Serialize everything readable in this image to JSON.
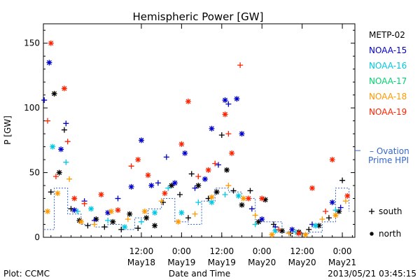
{
  "chart_data": {
    "type": "scatter",
    "title": "Hemispheric Power [GW]",
    "ylabel": "P [GW]",
    "xlabel": "Date and Time",
    "ylim": [
      0,
      165
    ],
    "xlim": [
      "2013-05-17T06:45",
      "2013-05-21T03:45"
    ],
    "yticks": [
      0,
      50,
      100,
      150
    ],
    "xticks": [
      {
        "time": "12:00",
        "date": "May18",
        "t": "2013-05-18T12:00"
      },
      {
        "time": "0:00",
        "date": "May19",
        "t": "2013-05-19T00:00"
      },
      {
        "time": "12:00",
        "date": "May19",
        "t": "2013-05-19T12:00"
      },
      {
        "time": "0:00",
        "date": "May20",
        "t": "2013-05-20T00:00"
      },
      {
        "time": "12:00",
        "date": "May20",
        "t": "2013-05-20T12:00"
      },
      {
        "time": "0:00",
        "date": "May21",
        "t": "2013-05-21T00:00"
      }
    ],
    "grid": false,
    "legend_position": "right",
    "markers": {
      "south": "+",
      "north": "*"
    },
    "series": [
      {
        "name": "METP-02",
        "color": "#000000",
        "points": [
          {
            "t": "2013-05-17T09:00",
            "v": 35,
            "m": "+"
          },
          {
            "t": "2013-05-17T10:00",
            "v": 111,
            "m": "*"
          },
          {
            "t": "2013-05-17T11:30",
            "v": 50,
            "m": "*"
          },
          {
            "t": "2013-05-17T13:00",
            "v": 83,
            "m": "+"
          },
          {
            "t": "2013-05-17T15:00",
            "v": 22,
            "m": "+"
          },
          {
            "t": "2013-05-17T17:30",
            "v": 13,
            "m": "*"
          },
          {
            "t": "2013-05-17T20:00",
            "v": 9,
            "m": "+"
          },
          {
            "t": "2013-05-17T22:30",
            "v": 14,
            "m": "*"
          },
          {
            "t": "2013-05-18T01:00",
            "v": 8,
            "m": "+"
          },
          {
            "t": "2013-05-18T03:30",
            "v": 12,
            "m": "*"
          },
          {
            "t": "2013-05-18T06:00",
            "v": 6,
            "m": "+"
          },
          {
            "t": "2013-05-18T08:30",
            "v": 18,
            "m": "*"
          },
          {
            "t": "2013-05-18T11:00",
            "v": 7,
            "m": "+"
          },
          {
            "t": "2013-05-18T13:30",
            "v": 15,
            "m": "*"
          },
          {
            "t": "2013-05-18T16:00",
            "v": 9,
            "m": "*"
          },
          {
            "t": "2013-05-18T18:30",
            "v": 27,
            "m": "+"
          },
          {
            "t": "2013-05-18T21:00",
            "v": 40,
            "m": "*"
          },
          {
            "t": "2013-05-18T23:30",
            "v": 33,
            "m": "+"
          },
          {
            "t": "2013-05-19T02:00",
            "v": 15,
            "m": "+"
          },
          {
            "t": "2013-05-19T03:00",
            "v": 49,
            "m": "+"
          },
          {
            "t": "2013-05-19T05:00",
            "v": 40,
            "m": "*"
          },
          {
            "t": "2013-05-19T08:00",
            "v": 30,
            "m": "+"
          },
          {
            "t": "2013-05-19T10:30",
            "v": 35,
            "m": "*"
          },
          {
            "t": "2013-05-19T12:00",
            "v": 79,
            "m": "+"
          },
          {
            "t": "2013-05-19T13:30",
            "v": 52,
            "m": "*"
          },
          {
            "t": "2013-05-19T15:30",
            "v": 36,
            "m": "+"
          },
          {
            "t": "2013-05-19T18:00",
            "v": 25,
            "m": "*"
          },
          {
            "t": "2013-05-19T20:30",
            "v": 36,
            "m": "+"
          },
          {
            "t": "2013-05-19T23:00",
            "v": 12,
            "m": "*"
          },
          {
            "t": "2013-05-20T01:00",
            "v": 29,
            "m": "*"
          },
          {
            "t": "2013-05-20T03:30",
            "v": 10,
            "m": "+"
          },
          {
            "t": "2013-05-20T06:00",
            "v": 5,
            "m": "*"
          },
          {
            "t": "2013-05-20T08:30",
            "v": 3,
            "m": "+"
          },
          {
            "t": "2013-05-20T11:00",
            "v": 4,
            "m": "*"
          },
          {
            "t": "2013-05-20T14:00",
            "v": 6,
            "m": "+"
          },
          {
            "t": "2013-05-20T17:00",
            "v": 9,
            "m": "*"
          },
          {
            "t": "2013-05-20T20:00",
            "v": 15,
            "m": "+"
          },
          {
            "t": "2013-05-20T23:00",
            "v": 20,
            "m": "*"
          },
          {
            "t": "2013-05-21T00:00",
            "v": 44,
            "m": "+"
          }
        ]
      },
      {
        "name": "NOAA-15",
        "color": "#0000cc",
        "points": [
          {
            "t": "2013-05-17T07:00",
            "v": 106,
            "m": "+"
          },
          {
            "t": "2013-05-17T08:30",
            "v": 135,
            "m": "*"
          },
          {
            "t": "2013-05-17T12:00",
            "v": 68,
            "m": "*"
          },
          {
            "t": "2013-05-17T13:30",
            "v": 88,
            "m": "+"
          },
          {
            "t": "2013-05-17T16:00",
            "v": 21,
            "m": "*"
          },
          {
            "t": "2013-05-17T19:00",
            "v": 28,
            "m": "+"
          },
          {
            "t": "2013-05-17T22:00",
            "v": 13,
            "m": "+"
          },
          {
            "t": "2013-05-18T02:00",
            "v": 19,
            "m": "*"
          },
          {
            "t": "2013-05-18T05:00",
            "v": 30,
            "m": "+"
          },
          {
            "t": "2013-05-18T09:00",
            "v": 39,
            "m": "*"
          },
          {
            "t": "2013-05-18T12:00",
            "v": 75,
            "m": "*"
          },
          {
            "t": "2013-05-18T15:00",
            "v": 40,
            "m": "*"
          },
          {
            "t": "2013-05-18T17:00",
            "v": 42,
            "m": "+"
          },
          {
            "t": "2013-05-18T19:30",
            "v": 62,
            "m": "+"
          },
          {
            "t": "2013-05-18T22:00",
            "v": 42,
            "m": "*"
          },
          {
            "t": "2013-05-19T01:00",
            "v": 65,
            "m": "*"
          },
          {
            "t": "2013-05-19T04:00",
            "v": 38,
            "m": "+"
          },
          {
            "t": "2013-05-19T07:00",
            "v": 45,
            "m": "*"
          },
          {
            "t": "2013-05-19T09:00",
            "v": 84,
            "m": "*"
          },
          {
            "t": "2013-05-19T11:00",
            "v": 56,
            "m": "+"
          },
          {
            "t": "2013-05-19T13:00",
            "v": 106,
            "m": "*"
          },
          {
            "t": "2013-05-19T14:00",
            "v": 103,
            "m": "+"
          },
          {
            "t": "2013-05-19T16:30",
            "v": 107,
            "m": "*"
          },
          {
            "t": "2013-05-19T18:00",
            "v": 80,
            "m": "*"
          },
          {
            "t": "2013-05-19T21:00",
            "v": 22,
            "m": "+"
          },
          {
            "t": "2013-05-20T00:00",
            "v": 14,
            "m": "*"
          },
          {
            "t": "2013-05-20T04:00",
            "v": 8,
            "m": "+"
          },
          {
            "t": "2013-05-20T09:00",
            "v": 6,
            "m": "*"
          },
          {
            "t": "2013-05-20T15:00",
            "v": 10,
            "m": "+"
          },
          {
            "t": "2013-05-20T21:00",
            "v": 27,
            "m": "*"
          },
          {
            "t": "2013-05-20T23:30",
            "v": 23,
            "m": "+"
          }
        ]
      },
      {
        "name": "NOAA-16",
        "color": "#00c8e6",
        "points": [
          {
            "t": "2013-05-17T09:30",
            "v": 70,
            "m": "*"
          },
          {
            "t": "2013-05-17T13:30",
            "v": 58,
            "m": "+"
          },
          {
            "t": "2013-05-17T17:00",
            "v": 20,
            "m": "+"
          },
          {
            "t": "2013-05-17T21:00",
            "v": 22,
            "m": "*"
          },
          {
            "t": "2013-05-18T02:00",
            "v": 13,
            "m": "+"
          },
          {
            "t": "2013-05-18T07:00",
            "v": 8,
            "m": "*"
          },
          {
            "t": "2013-05-18T12:00",
            "v": 12,
            "m": "+"
          },
          {
            "t": "2013-05-18T16:00",
            "v": 19,
            "m": "*"
          },
          {
            "t": "2013-05-18T20:00",
            "v": 38,
            "m": "+"
          },
          {
            "t": "2013-05-19T00:00",
            "v": 19,
            "m": "*"
          },
          {
            "t": "2013-05-19T05:00",
            "v": 27,
            "m": "+"
          },
          {
            "t": "2013-05-19T09:00",
            "v": 27,
            "m": "*"
          },
          {
            "t": "2013-05-19T13:00",
            "v": 33,
            "m": "+"
          },
          {
            "t": "2013-05-19T17:00",
            "v": 32,
            "m": "*"
          },
          {
            "t": "2013-05-19T22:00",
            "v": 10,
            "m": "+"
          },
          {
            "t": "2013-05-20T04:00",
            "v": 5,
            "m": "*"
          },
          {
            "t": "2013-05-20T10:00",
            "v": 4,
            "m": "+"
          },
          {
            "t": "2013-05-20T16:00",
            "v": 9,
            "m": "*"
          },
          {
            "t": "2013-05-20T22:00",
            "v": 21,
            "m": "+"
          }
        ]
      },
      {
        "name": "NOAA-17",
        "color": "#00d470",
        "points": []
      },
      {
        "name": "NOAA-18",
        "color": "#ff9900",
        "points": [
          {
            "t": "2013-05-17T08:00",
            "v": 20,
            "m": "*"
          },
          {
            "t": "2013-05-17T11:00",
            "v": 34,
            "m": "*"
          },
          {
            "t": "2013-05-17T14:30",
            "v": 45,
            "m": "+"
          },
          {
            "t": "2013-05-17T18:00",
            "v": 12,
            "m": "*"
          },
          {
            "t": "2013-05-17T22:00",
            "v": 10,
            "m": "+"
          },
          {
            "t": "2013-05-18T03:00",
            "v": 20,
            "m": "*"
          },
          {
            "t": "2013-05-18T08:00",
            "v": 14,
            "m": "+"
          },
          {
            "t": "2013-05-18T13:00",
            "v": 20,
            "m": "*"
          },
          {
            "t": "2013-05-18T18:00",
            "v": 28,
            "m": "+"
          },
          {
            "t": "2013-05-18T23:00",
            "v": 12,
            "m": "*"
          },
          {
            "t": "2013-05-19T04:00",
            "v": 18,
            "m": "+"
          },
          {
            "t": "2013-05-19T09:00",
            "v": 31,
            "m": "*"
          },
          {
            "t": "2013-05-19T14:00",
            "v": 40,
            "m": "+"
          },
          {
            "t": "2013-05-19T18:30",
            "v": 30,
            "m": "*"
          },
          {
            "t": "2013-05-19T22:00",
            "v": 17,
            "m": "+"
          },
          {
            "t": "2013-05-20T03:00",
            "v": 2,
            "m": "*"
          },
          {
            "t": "2013-05-20T08:00",
            "v": 3,
            "m": "+"
          },
          {
            "t": "2013-05-20T13:00",
            "v": 2,
            "m": "*"
          },
          {
            "t": "2013-05-20T18:00",
            "v": 14,
            "m": "+"
          },
          {
            "t": "2013-05-20T22:00",
            "v": 17,
            "m": "*"
          },
          {
            "t": "2013-05-21T01:00",
            "v": 28,
            "m": "+"
          }
        ]
      },
      {
        "name": "NOAA-19",
        "color": "#ff2200",
        "points": [
          {
            "t": "2013-05-17T08:00",
            "v": 90,
            "m": "+"
          },
          {
            "t": "2013-05-17T09:00",
            "v": 150,
            "m": "*"
          },
          {
            "t": "2013-05-17T10:30",
            "v": 47,
            "m": "+"
          },
          {
            "t": "2013-05-17T13:00",
            "v": 115,
            "m": "*"
          },
          {
            "t": "2013-05-17T14:00",
            "v": 74,
            "m": "+"
          },
          {
            "t": "2013-05-17T16:00",
            "v": 30,
            "m": "*"
          },
          {
            "t": "2013-05-17T19:00",
            "v": 26,
            "m": "+"
          },
          {
            "t": "2013-05-18T00:00",
            "v": 33,
            "m": "*"
          },
          {
            "t": "2013-05-18T05:00",
            "v": 21,
            "m": "*"
          },
          {
            "t": "2013-05-18T09:00",
            "v": 55,
            "m": "+"
          },
          {
            "t": "2013-05-18T11:00",
            "v": 60,
            "m": "*"
          },
          {
            "t": "2013-05-18T14:00",
            "v": 48,
            "m": "*"
          },
          {
            "t": "2013-05-18T19:00",
            "v": 34,
            "m": "*"
          },
          {
            "t": "2013-05-19T00:00",
            "v": 72,
            "m": "*"
          },
          {
            "t": "2013-05-19T02:00",
            "v": 105,
            "m": "*"
          },
          {
            "t": "2013-05-19T05:00",
            "v": 47,
            "m": "+"
          },
          {
            "t": "2013-05-19T08:00",
            "v": 52,
            "m": "*"
          },
          {
            "t": "2013-05-19T10:00",
            "v": 57,
            "m": "+"
          },
          {
            "t": "2013-05-19T13:00",
            "v": 95,
            "m": "*"
          },
          {
            "t": "2013-05-19T14:00",
            "v": 80,
            "m": "+"
          },
          {
            "t": "2013-05-19T15:00",
            "v": 65,
            "m": "*"
          },
          {
            "t": "2013-05-19T17:30",
            "v": 133,
            "m": "+"
          },
          {
            "t": "2013-05-19T20:00",
            "v": 30,
            "m": "*"
          },
          {
            "t": "2013-05-20T00:00",
            "v": 30,
            "m": "*"
          },
          {
            "t": "2013-05-20T05:00",
            "v": 6,
            "m": "+"
          },
          {
            "t": "2013-05-20T11:00",
            "v": 3,
            "m": "*"
          },
          {
            "t": "2013-05-20T15:00",
            "v": 38,
            "m": "*"
          },
          {
            "t": "2013-05-20T19:00",
            "v": 20,
            "m": "+"
          },
          {
            "t": "2013-05-20T21:00",
            "v": 60,
            "m": "*"
          },
          {
            "t": "2013-05-21T01:30",
            "v": 32,
            "m": "*"
          }
        ]
      }
    ],
    "ovation": {
      "label_line1": "– Ovation",
      "label_line2": "Prime HPI",
      "color": "#3366cc",
      "value": 67,
      "points": [
        {
          "t": "2013-05-17T07:00",
          "v": 6
        },
        {
          "t": "2013-05-17T10:00",
          "v": 38
        },
        {
          "t": "2013-05-17T14:00",
          "v": 18
        },
        {
          "t": "2013-05-17T18:00",
          "v": 10
        },
        {
          "t": "2013-05-17T22:00",
          "v": 8
        },
        {
          "t": "2013-05-18T02:00",
          "v": 10
        },
        {
          "t": "2013-05-18T06:00",
          "v": 6
        },
        {
          "t": "2013-05-18T10:00",
          "v": 15
        },
        {
          "t": "2013-05-18T14:00",
          "v": 22
        },
        {
          "t": "2013-05-18T18:00",
          "v": 30
        },
        {
          "t": "2013-05-18T22:00",
          "v": 12
        },
        {
          "t": "2013-05-19T02:00",
          "v": 10
        },
        {
          "t": "2013-05-19T06:00",
          "v": 28
        },
        {
          "t": "2013-05-19T10:00",
          "v": 38
        },
        {
          "t": "2013-05-19T14:00",
          "v": 35
        },
        {
          "t": "2013-05-19T18:00",
          "v": 30
        },
        {
          "t": "2013-05-19T22:00",
          "v": 12
        },
        {
          "t": "2013-05-20T02:00",
          "v": 12
        },
        {
          "t": "2013-05-20T06:00",
          "v": 4
        },
        {
          "t": "2013-05-20T10:00",
          "v": 3
        },
        {
          "t": "2013-05-20T14:00",
          "v": 4
        },
        {
          "t": "2013-05-20T18:00",
          "v": 12
        },
        {
          "t": "2013-05-20T22:00",
          "v": 38
        },
        {
          "t": "2013-05-21T02:00",
          "v": 20
        }
      ]
    }
  },
  "footer": {
    "left": "Plot: CCMC",
    "right": "2013/05/21  03:45:15"
  },
  "legend_markers": [
    {
      "symbol": "+",
      "label": "south"
    },
    {
      "symbol": "*",
      "label": "north"
    }
  ]
}
